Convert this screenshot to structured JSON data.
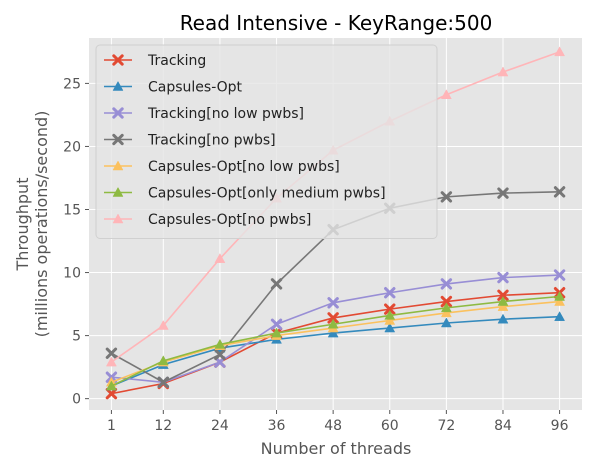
{
  "chart_data": {
    "type": "line",
    "title": "Read Intensive - KeyRange:500",
    "xlabel": "Number of threads",
    "ylabel_line1": "Throughput",
    "ylabel_line2": "(millions operations/second)",
    "x": [
      1,
      12,
      24,
      36,
      48,
      60,
      72,
      84,
      96
    ],
    "x_ticks": [
      "1",
      "12",
      "24",
      "36",
      "48",
      "60",
      "72",
      "84",
      "96"
    ],
    "ylim": [
      -0.9,
      28.6
    ],
    "y_ticks": [
      0,
      5,
      10,
      15,
      20,
      25
    ],
    "grid": true,
    "legend_position": "upper-left",
    "series": [
      {
        "name": "Tracking",
        "color": "#E24A33",
        "marker": "x-cross",
        "values": [
          0.4,
          1.2,
          2.9,
          5.2,
          6.4,
          7.1,
          7.7,
          8.2,
          8.4
        ]
      },
      {
        "name": "Capsules-Opt",
        "color": "#348ABD",
        "marker": "triangle",
        "values": [
          1.0,
          2.7,
          4.0,
          4.7,
          5.2,
          5.6,
          6.0,
          6.3,
          6.5
        ]
      },
      {
        "name": "Tracking[no low pwbs]",
        "color": "#988ED5",
        "marker": "x-cross",
        "values": [
          1.7,
          1.3,
          2.9,
          5.9,
          7.6,
          8.4,
          9.1,
          9.6,
          9.8
        ]
      },
      {
        "name": "Tracking[no pwbs]",
        "color": "#777777",
        "marker": "x-cross",
        "values": [
          3.6,
          1.3,
          3.5,
          9.1,
          13.4,
          15.1,
          16.0,
          16.3,
          16.4
        ]
      },
      {
        "name": "Capsules-Opt[no low pwbs]",
        "color": "#FBC15E",
        "marker": "triangle",
        "values": [
          1.3,
          2.9,
          4.2,
          5.0,
          5.6,
          6.2,
          6.8,
          7.3,
          7.7
        ]
      },
      {
        "name": "Capsules-Opt[only medium pwbs]",
        "color": "#8EBA42",
        "marker": "triangle",
        "values": [
          1.0,
          3.0,
          4.3,
          5.2,
          5.9,
          6.6,
          7.2,
          7.7,
          8.1
        ]
      },
      {
        "name": "Capsules-Opt[no pwbs]",
        "color": "#FFB5B8",
        "marker": "triangle",
        "values": [
          2.9,
          5.8,
          11.1,
          15.9,
          19.7,
          22.0,
          24.1,
          25.9,
          27.5
        ]
      }
    ]
  }
}
